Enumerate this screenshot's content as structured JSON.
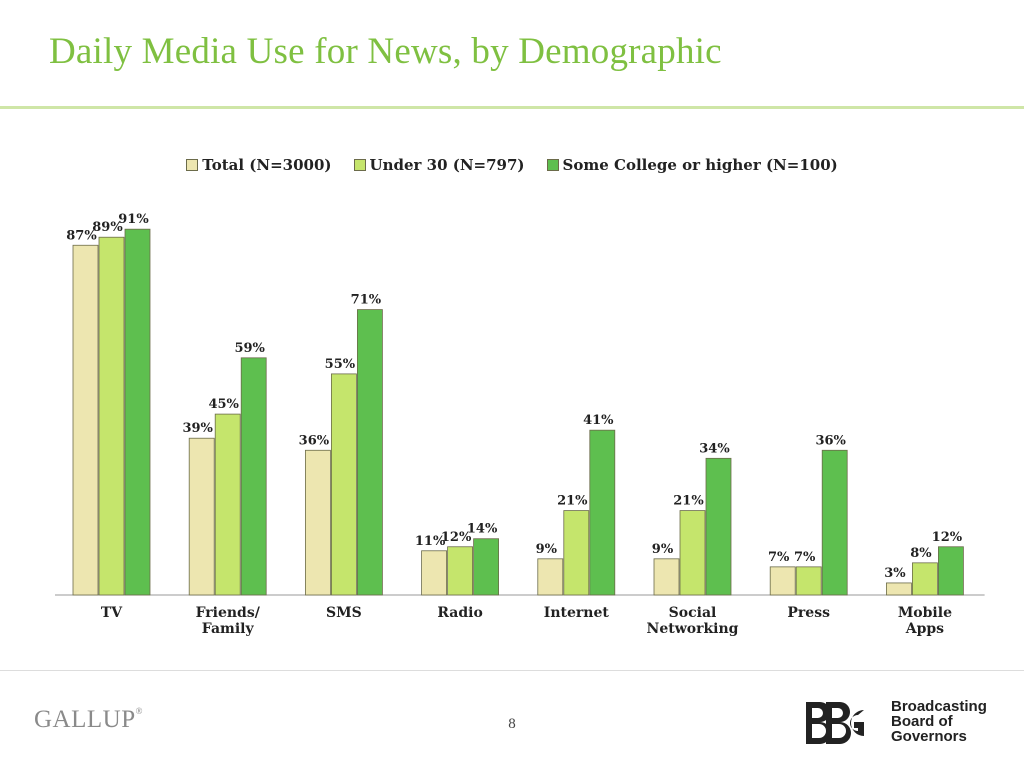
{
  "slide": {
    "title": "Daily Media Use for News, by Demographic",
    "page_number": "8"
  },
  "footer": {
    "left_logo_text": "GALLUP",
    "left_logo_mark": "®",
    "right_logo_mark": "BBG",
    "right_logo_lines": [
      "Broadcasting",
      "Board of",
      "Governors"
    ]
  },
  "colors": {
    "title": "#7fc041",
    "series": [
      "#ede6b0",
      "#c5e56c",
      "#5ebf4f"
    ],
    "bar_stroke": "#6b6b4a"
  },
  "chart_data": {
    "type": "bar",
    "title": "",
    "categories": [
      [
        "TV"
      ],
      [
        "Friends/",
        "Family"
      ],
      [
        "SMS"
      ],
      [
        "Radio"
      ],
      [
        "Internet"
      ],
      [
        "Social",
        "Networking"
      ],
      [
        "Press"
      ],
      [
        "Mobile",
        "Apps"
      ]
    ],
    "series": [
      {
        "name": "Total (N=3000)",
        "values": [
          87,
          39,
          36,
          11,
          9,
          9,
          7,
          3
        ]
      },
      {
        "name": "Under 30 (N=797)",
        "values": [
          89,
          45,
          55,
          12,
          21,
          21,
          7,
          8
        ]
      },
      {
        "name": "Some College or higher (N=100)",
        "values": [
          91,
          59,
          71,
          14,
          41,
          34,
          36,
          12
        ]
      }
    ],
    "value_suffix": "%",
    "ylim": [
      0,
      100
    ],
    "grid": false,
    "legend_position": "top",
    "xlabel": "",
    "ylabel": ""
  }
}
